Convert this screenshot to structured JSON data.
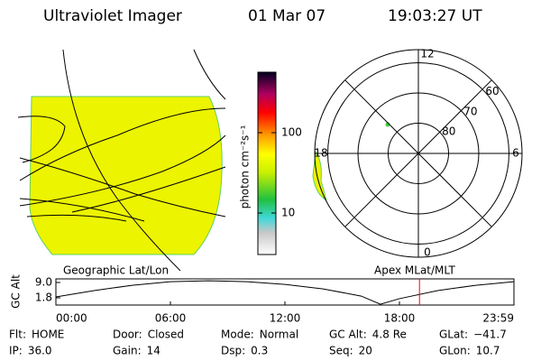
{
  "header": {
    "title": "Ultraviolet Imager",
    "date": "01 Mar 07",
    "time": "19:03:27 UT"
  },
  "colorbar": {
    "label": "photon cm⁻²s⁻¹",
    "ticks": [
      100,
      10
    ],
    "log": true
  },
  "map_label": "Geographic Lat/Lon",
  "polar": {
    "label": "Apex MLat/MLT",
    "mlt_labels": [
      12,
      6,
      0,
      18
    ],
    "lat_rings": [
      80,
      70,
      60
    ]
  },
  "chart_data": {
    "type": "line",
    "ylabel": "GC Alt",
    "x": [
      0,
      2,
      4,
      6,
      8,
      10,
      12,
      14,
      16,
      17,
      18,
      20,
      22,
      24
    ],
    "series": [
      {
        "color": "#000000",
        "values": [
          2.2,
          5.2,
          7.7,
          9.4,
          9.8,
          9.4,
          8.1,
          6.0,
          2.6,
          -1.2,
          1.4,
          5.2,
          7.7,
          9.4
        ]
      }
    ],
    "xlim": [
      0,
      24
    ],
    "xticks": [
      {
        "value": 0,
        "label": "00:00"
      },
      {
        "value": 6,
        "label": "06:00"
      },
      {
        "value": 12,
        "label": "12:00"
      },
      {
        "value": 18,
        "label": "18:00"
      },
      {
        "value": 24,
        "label": "23:59"
      }
    ],
    "ylim": [
      -1.6,
      10.7
    ],
    "yticks": [
      {
        "value": 9.0,
        "label": "9.0"
      },
      {
        "value": 1.8,
        "label": "1.8"
      }
    ],
    "marker_x": 19.05,
    "marker_color": "#ff0000"
  },
  "info": [
    [
      {
        "label": "Flt:",
        "value": "HOME"
      },
      {
        "label": "Door:",
        "value": "Closed"
      },
      {
        "label": "Mode:",
        "value": "Normal"
      },
      {
        "label": "GC Alt:",
        "value": "4.8 Re"
      },
      {
        "label": "GLat:",
        "value": "−41.7"
      }
    ],
    [
      {
        "label": "IP:",
        "value": "36.0"
      },
      {
        "label": "Gain:",
        "value": "14"
      },
      {
        "label": "Dsp:",
        "value": "0.3"
      },
      {
        "label": "Seq:",
        "value": "20"
      },
      {
        "label": "GLon:",
        "value": "10.7"
      }
    ]
  ]
}
